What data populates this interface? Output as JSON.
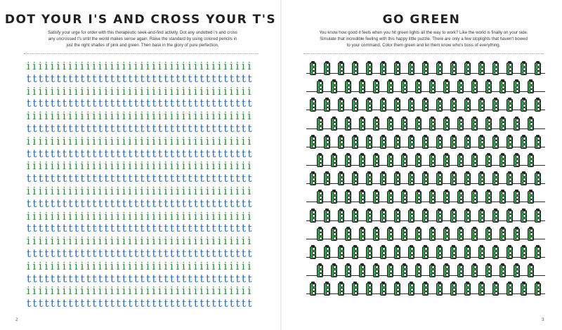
{
  "left_page": {
    "title": "DOT YOUR I'S AND CROSS YOUR T'S",
    "intro": "Satisfy your urge for order with this therapeutic seek-and-find activity. Dot any undotted i's and cross any uncrossed t's until the world makes sense again. Raise the standard by using colored pencils in just the right shades of pink and green. Then bask in the glory of pure perfection.",
    "page_number": "2",
    "letter_row_pattern": [
      "i",
      "t"
    ],
    "rows": 20,
    "columns": 38
  },
  "right_page": {
    "title": "GO GREEN",
    "intro": "You know how good it feels when you hit green lights all the way to work? Like the world is finally on your side. Simulate that incredible feeling with this happy little puzzle. There are only a few stoplights that haven't bowed to your command. Color them green and let them know who's boss of everything.",
    "page_number": "3",
    "rows": 13,
    "columns": 17,
    "colors": {
      "housing": "#3a9f4e",
      "wire": "#2a2a2a",
      "lamp_off": "#ffffff"
    }
  },
  "colors": {
    "letter_t": "#2f6fb0",
    "letter_i": "#2e8b3d"
  }
}
